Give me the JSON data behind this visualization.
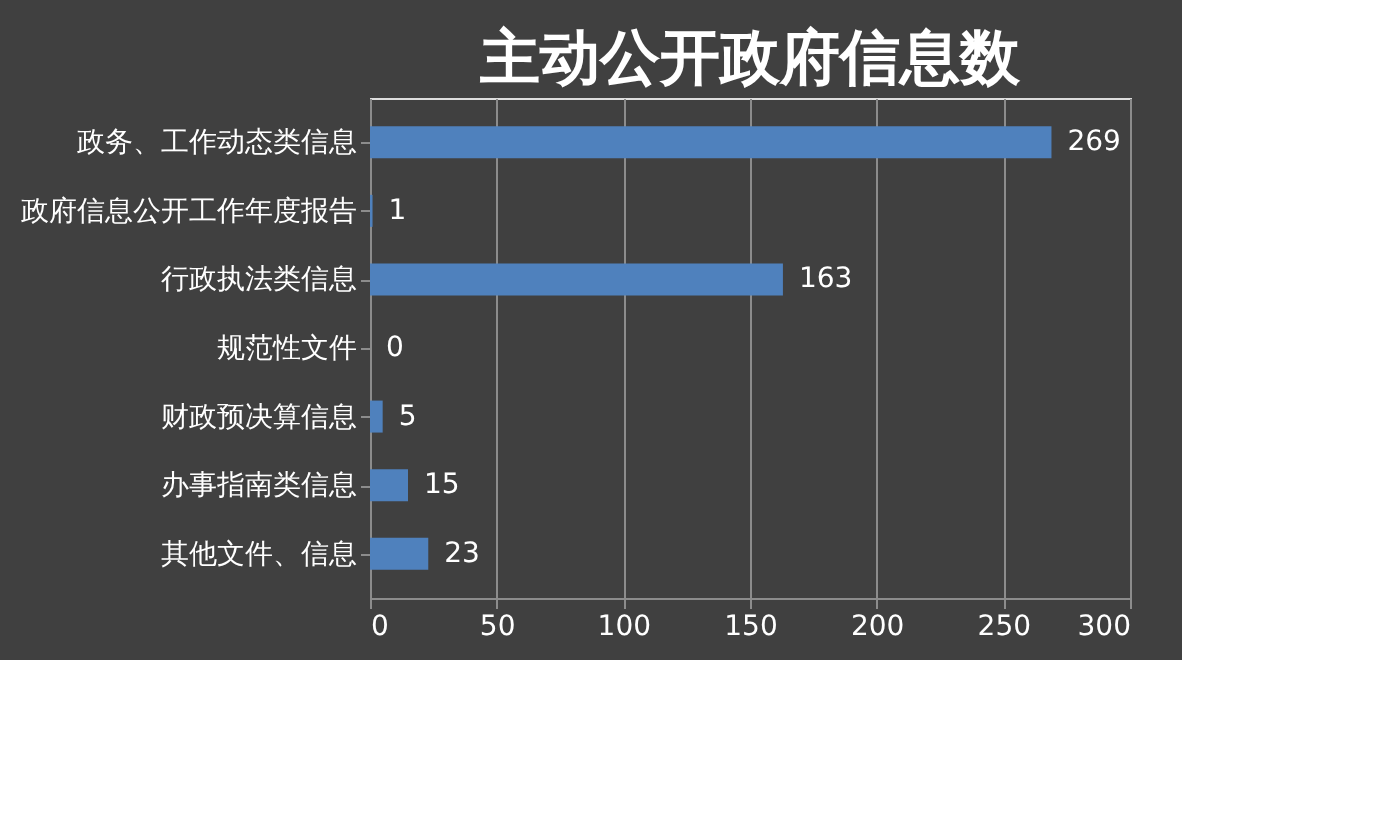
{
  "chart_data": {
    "type": "bar",
    "orientation": "horizontal",
    "title": "主动公开政府信息数",
    "categories": [
      "政务、工作动态类信息",
      "政府信息公开工作年度报告",
      "行政执法类信息",
      "规范性文件",
      "财政预决算信息",
      "办事指南类信息",
      "其他文件、信息"
    ],
    "values": [
      269,
      1,
      163,
      0,
      5,
      15,
      23
    ],
    "color": "#4f81bd",
    "xlim": [
      0,
      300
    ],
    "xticks": [
      0,
      50,
      100,
      150,
      200,
      250,
      300
    ],
    "grid": "x",
    "data_labels": true
  }
}
